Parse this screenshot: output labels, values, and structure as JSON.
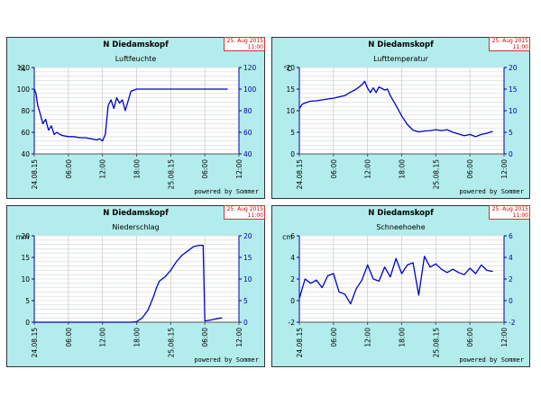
{
  "panels": [
    {
      "id": "p1",
      "station": "N Diedamskopf",
      "stamp_date": "25. Aug 2015",
      "stamp_time": "11:00",
      "powered_by": "powered by Sommer",
      "chart_data": {
        "type": "line",
        "title": "Luftfeuchte",
        "unit": "%",
        "ylim": [
          40,
          120
        ],
        "yticks": [
          "40",
          "60",
          "80",
          "100",
          "120"
        ],
        "ryticks": [
          "40",
          "60",
          "80",
          "100",
          "120"
        ],
        "xticks": [
          "24.08.15",
          "06:00",
          "12:00",
          "18:00",
          "25.08.15",
          "06:00",
          "12:00"
        ],
        "grid": true,
        "series": [
          {
            "color": "#0000cc",
            "x": [
              0,
              0.3,
              0.6,
              1,
              1.5,
              2,
              2.5,
              3,
              3.5,
              4,
              4.5,
              5,
              6,
              7,
              8,
              9,
              10,
              11,
              11.5,
              12,
              12.5,
              13,
              13.5,
              14,
              14.5,
              15,
              15.5,
              16,
              17,
              18,
              19,
              20,
              21,
              22,
              23,
              24,
              26,
              28,
              30,
              32,
              34
            ],
            "values": [
              100,
              96,
              85,
              78,
              68,
              72,
              62,
              66,
              58,
              60,
              58,
              57,
              56,
              56,
              55,
              55,
              54,
              53,
              54,
              52,
              58,
              85,
              90,
              82,
              92,
              87,
              90,
              80,
              98,
              100,
              100,
              100,
              100,
              100,
              100,
              100,
              100,
              100,
              100,
              100,
              100
            ]
          }
        ]
      }
    },
    {
      "id": "p2",
      "station": "N Diedamskopf",
      "stamp_date": "25. Aug 2015",
      "stamp_time": "11:00",
      "powered_by": "powered by Sommer",
      "chart_data": {
        "type": "line",
        "title": "Lufttemperatur",
        "unit": "°C",
        "ylim": [
          0,
          20
        ],
        "yticks": [
          "0",
          "5",
          "10",
          "15",
          "20"
        ],
        "ryticks": [
          "0",
          "5",
          "10",
          "15",
          "20"
        ],
        "xticks": [
          "24.08.15",
          "06:00",
          "12:00",
          "18:00",
          "25.08.15",
          "06:00",
          "12:00"
        ],
        "grid": true,
        "series": [
          {
            "color": "#0000cc",
            "x": [
              0,
              0.5,
              1,
              2,
              3,
              4,
              5,
              6,
              7,
              8,
              9,
              10,
              11,
              11.5,
              12,
              12.5,
              13,
              13.5,
              14,
              15,
              15.5,
              16,
              17,
              18,
              19,
              20,
              21,
              22,
              23,
              24,
              25,
              26,
              27,
              28,
              29,
              30,
              31,
              32,
              33,
              34
            ],
            "values": [
              10.5,
              11.5,
              11.8,
              12.2,
              12.3,
              12.5,
              12.7,
              12.9,
              13.2,
              13.5,
              14.3,
              15,
              16,
              16.8,
              15.2,
              14.2,
              15.3,
              14.2,
              15.5,
              14.8,
              15,
              13.5,
              11.2,
              8.8,
              6.8,
              5.5,
              5.1,
              5.3,
              5.4,
              5.6,
              5.4,
              5.6,
              5.0,
              4.6,
              4.2,
              4.5,
              4.0,
              4.5,
              4.8,
              5.2
            ]
          }
        ]
      }
    },
    {
      "id": "p3",
      "station": "N Diedamskopf",
      "stamp_date": "25. Aug 2015",
      "stamp_time": "11:00",
      "powered_by": "powered by Sommer",
      "chart_data": {
        "type": "line",
        "title": "Niederschlag",
        "unit": "mm",
        "ylim": [
          0,
          20
        ],
        "yticks": [
          "0",
          "5",
          "10",
          "15",
          "20"
        ],
        "ryticks": [
          "0",
          "5",
          "10",
          "15",
          "20"
        ],
        "xticks": [
          "24.08.15",
          "06:00",
          "12:00",
          "18:00",
          "25.08.15",
          "06:00",
          "12:00"
        ],
        "grid": true,
        "series": [
          {
            "color": "#0000cc",
            "x": [
              0,
              10,
              17,
              18,
              19,
              20,
              21,
              21.5,
              22,
              23,
              24,
              25,
              26,
              27,
              28,
              29,
              29.7,
              30,
              31,
              32,
              33
            ],
            "values": [
              0,
              0,
              0,
              0.1,
              1,
              2.8,
              6,
              8,
              9.5,
              10.5,
              12,
              14,
              15.5,
              16.5,
              17.5,
              17.8,
              17.8,
              0.3,
              0.5,
              0.8,
              1.0
            ]
          }
        ]
      }
    },
    {
      "id": "p4",
      "station": "N Diedamskopf",
      "stamp_date": "25. Aug 2015",
      "stamp_time": "11:00",
      "powered_by": "powered by Sommer",
      "chart_data": {
        "type": "line",
        "title": "Schneehoehe",
        "unit": "cm",
        "ylim": [
          -2,
          6
        ],
        "yticks": [
          "-2",
          "0",
          "2",
          "4",
          "6"
        ],
        "ryticks": [
          "-2",
          "0",
          "2",
          "4",
          "6"
        ],
        "xticks": [
          "24.08.15",
          "06:00",
          "12:00",
          "18:00",
          "25.08.15",
          "06:00",
          "12:00"
        ],
        "grid": true,
        "series": [
          {
            "color": "#0000cc",
            "x": [
              0,
              1,
              2,
              3,
              4,
              5,
              6,
              7,
              8,
              9,
              10,
              11,
              12,
              13,
              14,
              15,
              16,
              17,
              18,
              19,
              20,
              21,
              22,
              23,
              24,
              25,
              26,
              27,
              28,
              29,
              30,
              31,
              32,
              33,
              34
            ],
            "values": [
              0.2,
              2,
              1.6,
              1.9,
              1.2,
              2.3,
              2.5,
              0.8,
              0.6,
              -0.3,
              1.1,
              1.9,
              3.3,
              2,
              1.8,
              3.1,
              2.2,
              3.9,
              2.5,
              3.3,
              3.5,
              0.5,
              4.1,
              3.1,
              3.4,
              2.9,
              2.6,
              2.9,
              2.6,
              2.4,
              3,
              2.5,
              3.3,
              2.8,
              2.7
            ]
          }
        ]
      }
    }
  ]
}
